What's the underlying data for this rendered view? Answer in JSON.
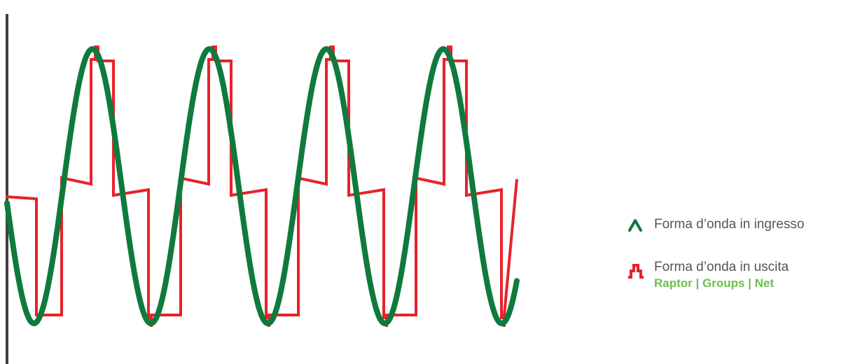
{
  "colors": {
    "input": "#0f7a3d",
    "output": "#e8222b",
    "axis": "#404040",
    "legend_text": "#555555",
    "brand": "#6abf4b"
  },
  "legend": {
    "input_label": "Forma d’onda in ingresso",
    "input_icon": "sine-peak-icon",
    "output_label": "Forma d’onda in uscita",
    "output_icon": "step-pulse-icon",
    "output_brand": "Raptor | Groups | Net"
  }
}
